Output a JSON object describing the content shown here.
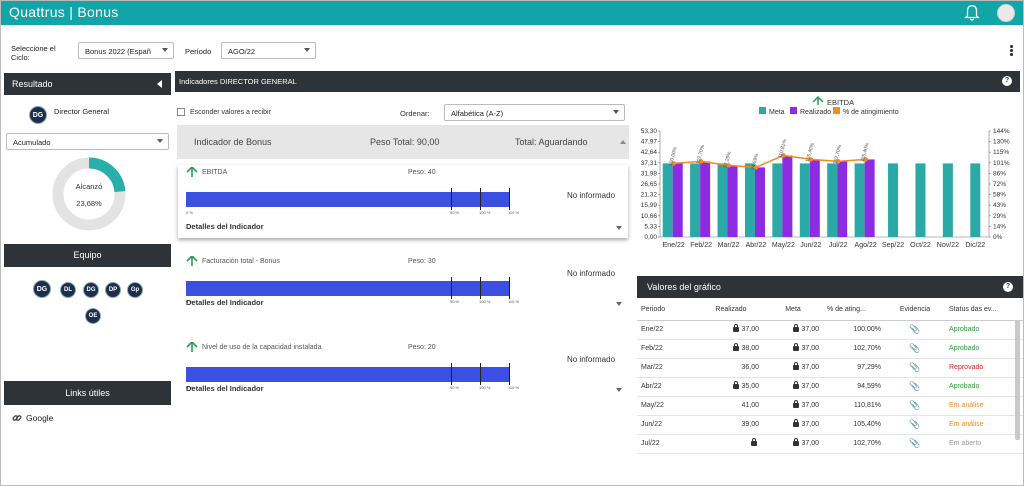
{
  "app": {
    "title": "Quattrus | Bonus"
  },
  "filters": {
    "cycle_label": "Seleccione el Ciclo:",
    "cycle_value": "Bonus 2022 (Españ",
    "period_label": "Período",
    "period_value": "AGO/22"
  },
  "sidebar": {
    "result_title": "Resultado",
    "director_initials": "DG",
    "director_name": "Director General",
    "accum_value": "Acumulado",
    "donut_label": "Alcanzó",
    "donut_value": "23,68%",
    "donut_fraction": 0.2368,
    "team_title": "Equipo",
    "team": [
      "DG",
      "DL",
      "DG",
      "DP",
      "Gp",
      "OE"
    ],
    "links_title": "Links útiles",
    "links": [
      "Google"
    ]
  },
  "main": {
    "title": "Indicadores DIRECTOR GENERAL",
    "hide_label": "Esconder valores a recibir",
    "order_label": "Ordenar:",
    "order_value": "Alfabética (A-Z)",
    "summary": {
      "indicator": "Indicador de Bonus",
      "peso_total": "Peso Total: 90,00",
      "total": "Total: Aguardando"
    },
    "ticks": [
      "0 %",
      "90 %",
      "100 %",
      "110 %"
    ],
    "details_label": "Detalles del Indicador",
    "indicators": [
      {
        "name": "EBITDA",
        "peso": "Peso: 40",
        "status": "No informado"
      },
      {
        "name": "Facturación total - Bonus",
        "peso": "Peso: 30",
        "status": "No informado"
      },
      {
        "name": "Nivel de uso de la capacidad instalada",
        "peso": "Peso: 20",
        "status": "No informado"
      }
    ]
  },
  "chart_data": {
    "type": "bar",
    "title": "EBITDA",
    "legend": [
      "Meta",
      "Realizado",
      "% de atingimiento"
    ],
    "colors": {
      "meta": "#2aa9a6",
      "realizado": "#8b2be2",
      "pct": "#f28c1e"
    },
    "categories": [
      "Ene/22",
      "Feb/22",
      "Mar/22",
      "Abr/22",
      "May/22",
      "Jun/22",
      "Jul/22",
      "Ago/22",
      "Sep/22",
      "Oct/22",
      "Nov/22",
      "Dic/22"
    ],
    "series": [
      {
        "name": "Meta",
        "values": [
          37,
          37,
          37,
          37,
          37,
          37,
          37,
          37,
          37,
          37,
          37,
          37
        ]
      },
      {
        "name": "Realizado",
        "values": [
          37,
          38,
          36,
          35,
          41,
          39,
          38,
          39,
          null,
          null,
          null,
          null
        ]
      },
      {
        "name": "% de atingimiento",
        "values": [
          100,
          102.7,
          97.29,
          94.59,
          110.81,
          105.4,
          102.7,
          105.4,
          null,
          null,
          null,
          null
        ]
      }
    ],
    "point_labels": [
      "100,00%",
      "102,70%",
      "97,29%",
      "94,59%",
      "110,81%",
      "105,40%",
      "102,70%",
      "105,40%"
    ],
    "y_ticks": [
      "53,30",
      "47,97",
      "42,64",
      "37,31",
      "31,98",
      "26,65",
      "21,32",
      "15,99",
      "10,66",
      "5,33",
      "0,00"
    ],
    "y_right_ticks": [
      "144%",
      "130%",
      "115%",
      "101%",
      "86%",
      "72%",
      "58%",
      "43%",
      "29%",
      "14%",
      "0%"
    ],
    "ylim": [
      0,
      53.3
    ],
    "y2lim": [
      0,
      144
    ]
  },
  "values_table": {
    "title": "Valores del gráfico",
    "headers": [
      "Periodo",
      "Realizado",
      "Meta",
      "% de ating...",
      "Evidencia",
      "Status das ev..."
    ],
    "rows": [
      {
        "period": "Ene/22",
        "real": "37,00",
        "locked": true,
        "meta": "37,00",
        "pct": "100,00%",
        "status": "Aprobado",
        "status_color": "#2e9a3a"
      },
      {
        "period": "Feb/22",
        "real": "38,00",
        "locked": true,
        "meta": "37,00",
        "pct": "102,70%",
        "status": "Aprobado",
        "status_color": "#2e9a3a"
      },
      {
        "period": "Mar/22",
        "real": "36,00",
        "locked": false,
        "meta": "37,00",
        "pct": "97,29%",
        "status": "Reprovado",
        "status_color": "#e02020"
      },
      {
        "period": "Abr/22",
        "real": "35,00",
        "locked": true,
        "meta": "37,00",
        "pct": "94,59%",
        "status": "Aprobado",
        "status_color": "#2e9a3a"
      },
      {
        "period": "May/22",
        "real": "41,00",
        "locked": false,
        "meta": "37,00",
        "pct": "110,81%",
        "status": "Em análise",
        "status_color": "#f08c1e"
      },
      {
        "period": "Jun/22",
        "real": "39,00",
        "locked": false,
        "meta": "37,00",
        "pct": "105,40%",
        "status": "Em análise",
        "status_color": "#f08c1e"
      },
      {
        "period": "Jul/22",
        "real": "",
        "locked": true,
        "meta": "37,00",
        "pct": "102,70%",
        "status": "Em aberto",
        "status_color": "#999999"
      }
    ]
  }
}
